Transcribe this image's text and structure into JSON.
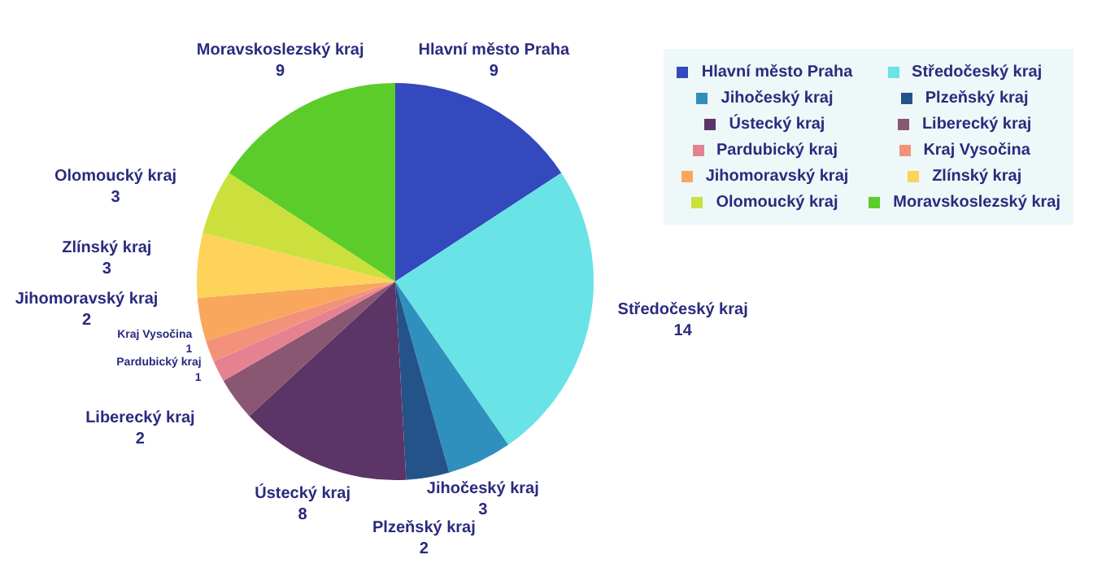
{
  "chart_data": {
    "type": "pie",
    "categories": [
      "Hlavní město Praha",
      "Středočeský kraj",
      "Jihočeský kraj",
      "Plzeňský kraj",
      "Ústecký kraj",
      "Liberecký kraj",
      "Pardubický kraj",
      "Kraj Vysočina",
      "Jihomoravský kraj",
      "Zlínský kraj",
      "Olomoucký kraj",
      "Moravskoslezský kraj"
    ],
    "values": [
      9,
      14,
      3,
      2,
      8,
      2,
      1,
      1,
      2,
      3,
      3,
      9
    ],
    "colors": [
      "#3449bd",
      "#69e3e6",
      "#2f8fbd",
      "#24538a",
      "#5c3567",
      "#8a5772",
      "#e58291",
      "#f3927a",
      "#f9a75c",
      "#fdd35a",
      "#cbe03c",
      "#5ccc2a"
    ],
    "data_labels": true,
    "legend": "top right"
  }
}
